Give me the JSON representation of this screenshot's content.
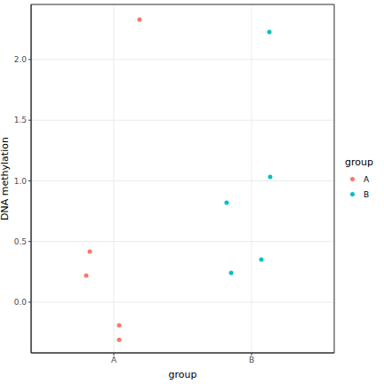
{
  "chart_data": {
    "type": "scatter",
    "x_label": "group",
    "y_label": "DNA methylation",
    "legend_title": "group",
    "legend": "right",
    "grid": true,
    "marker": "circle",
    "xlim": [
      0.4,
      2.6
    ],
    "xticks": [
      {
        "value": 1,
        "label": "A"
      },
      {
        "value": 2,
        "label": "B"
      }
    ],
    "ylim": [
      -0.418,
      2.454
    ],
    "yticks": [
      {
        "value": 0,
        "label": "0.0"
      },
      {
        "value": 0.5,
        "label": "0.5"
      },
      {
        "value": 1,
        "label": "1.0"
      },
      {
        "value": 1.5,
        "label": "1.5"
      },
      {
        "value": 2,
        "label": "2.0"
      }
    ],
    "series": [
      {
        "name": "A",
        "color": "#F8766D",
        "x": [
          1.187,
          0.826,
          0.8,
          1.039,
          1.039
        ],
        "values": [
          2.33,
          0.418,
          0.22,
          -0.19,
          -0.31
        ]
      },
      {
        "name": "B",
        "color": "#00BFC4",
        "x": [
          2.129,
          2.135,
          1.819,
          2.071,
          1.852
        ],
        "values": [
          2.227,
          1.033,
          0.82,
          0.352,
          0.242
        ]
      }
    ]
  }
}
